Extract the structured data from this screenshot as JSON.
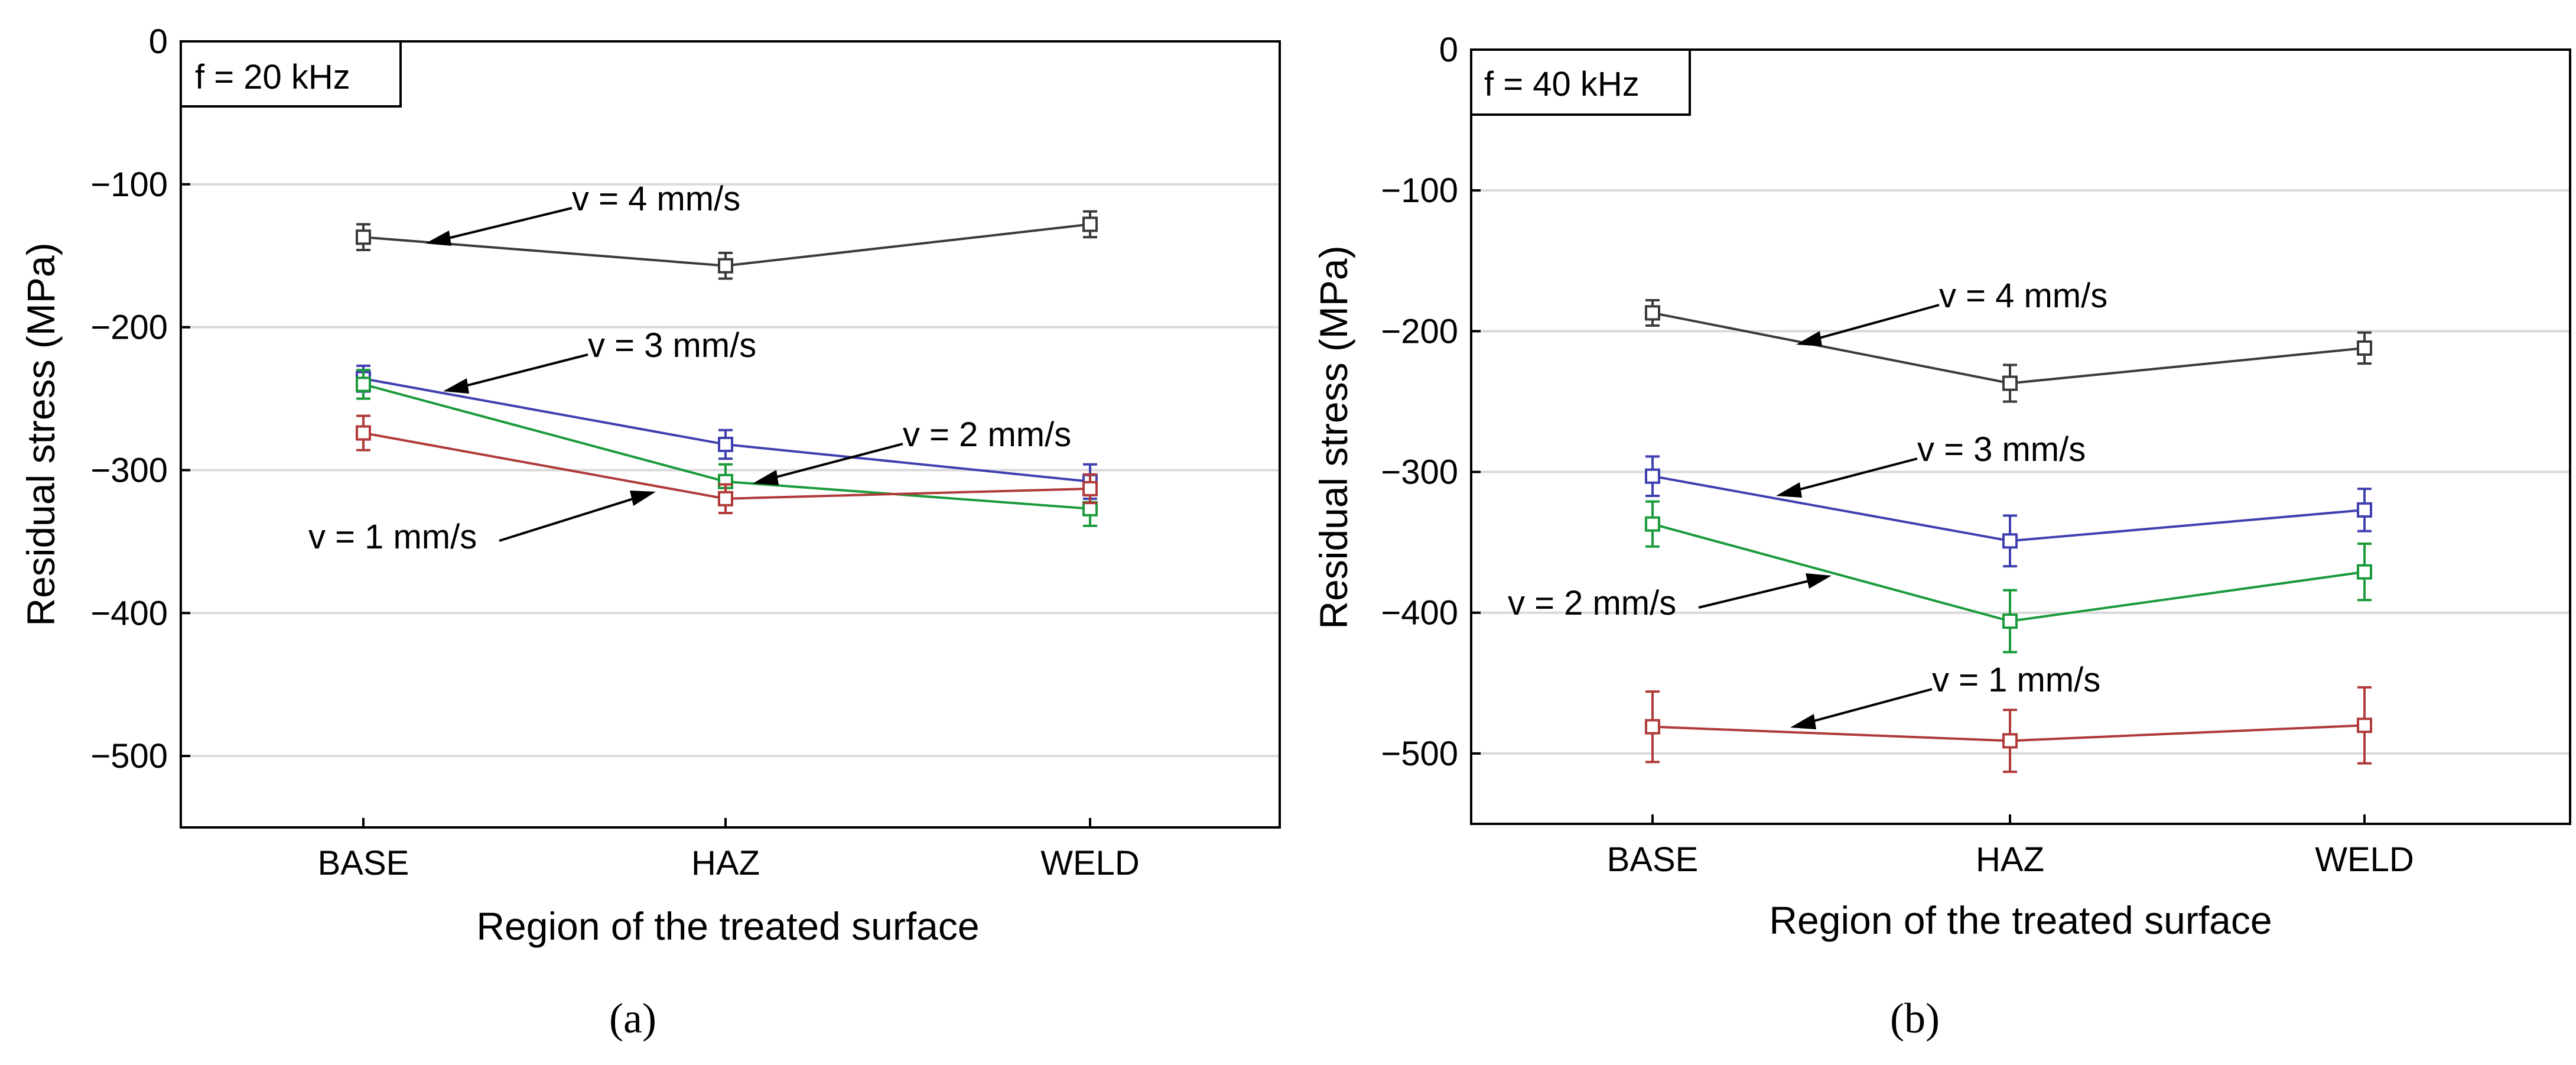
{
  "chart_data": [
    {
      "type": "line",
      "panel": "(a)",
      "freq_label": "f = 20 kHz",
      "categories": [
        "BASE",
        "HAZ",
        "WELD"
      ],
      "xlabel": "Region of the treated surface",
      "ylabel": "Residual stress (MPa)",
      "ylim": [
        -550,
        0
      ],
      "yticks": [
        0,
        -100,
        -200,
        -300,
        -400,
        -500
      ],
      "grid": true,
      "series": [
        {
          "name": "v = 4 mm/s",
          "color": "#3a3a3a",
          "values": [
            -137,
            -157,
            -128
          ],
          "errors": [
            9,
            9,
            9
          ]
        },
        {
          "name": "v = 3 mm/s",
          "color": "#3f3fb0",
          "values": [
            -236,
            -282,
            -308
          ],
          "errors": [
            9,
            10,
            12
          ]
        },
        {
          "name": "v = 2 mm/s",
          "color": "#1a9a3a",
          "values": [
            -240,
            -308,
            -327
          ],
          "errors": [
            10,
            12,
            12
          ]
        },
        {
          "name": "v = 1 mm/s",
          "color": "#b03a3a",
          "values": [
            -274,
            -320,
            -313
          ],
          "errors": [
            12,
            10,
            10
          ]
        }
      ]
    },
    {
      "type": "line",
      "panel": "(b)",
      "freq_label": "f = 40 kHz",
      "categories": [
        "BASE",
        "HAZ",
        "WELD"
      ],
      "xlabel": "Region of the treated surface",
      "ylabel": "Residual stress (MPa)",
      "ylim": [
        -550,
        0
      ],
      "yticks": [
        0,
        -100,
        -200,
        -300,
        -400,
        -500
      ],
      "grid": true,
      "series": [
        {
          "name": "v = 4 mm/s",
          "color": "#3a3a3a",
          "values": [
            -187,
            -237,
            -212
          ],
          "errors": [
            9,
            13,
            11
          ]
        },
        {
          "name": "v = 3 mm/s",
          "color": "#3f3fb0",
          "values": [
            -303,
            -349,
            -327
          ],
          "errors": [
            14,
            18,
            15
          ]
        },
        {
          "name": "v = 2 mm/s",
          "color": "#1a9a3a",
          "values": [
            -337,
            -406,
            -371
          ],
          "errors": [
            16,
            22,
            20
          ]
        },
        {
          "name": "v = 1 mm/s",
          "color": "#b03a3a",
          "values": [
            -481,
            -491,
            -480
          ],
          "errors": [
            25,
            22,
            27
          ]
        }
      ]
    }
  ]
}
